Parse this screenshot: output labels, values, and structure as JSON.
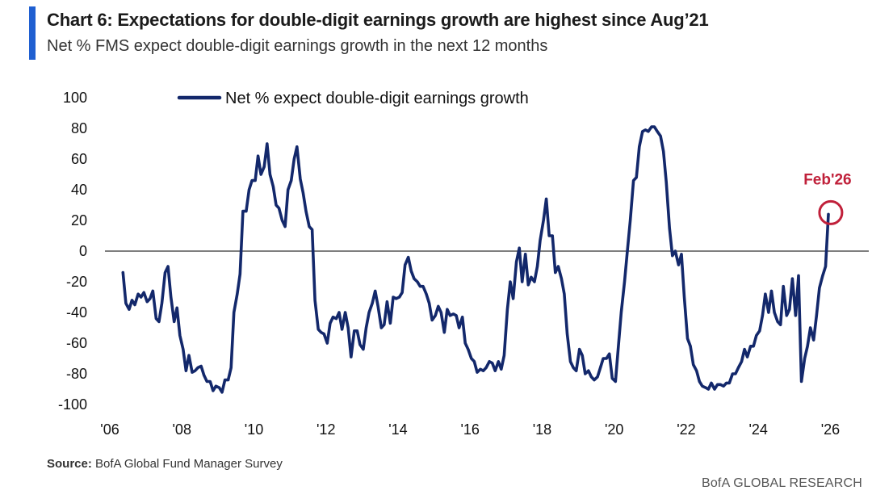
{
  "header": {
    "title": "Chart 6: Expectations for double-digit earnings growth are highest since Aug’21",
    "subtitle": "Net % FMS expect double-digit earnings growth in the next 12 months"
  },
  "footer": {
    "source_label": "Source:",
    "source_text": " BofA Global Fund Manager Survey",
    "brand": "BofA GLOBAL RESEARCH"
  },
  "colors": {
    "line": "#13286b",
    "accent": "#1f5fd1",
    "annotation": "#c0203a",
    "zero_line": "#555555"
  },
  "chart_data": {
    "type": "line",
    "title": "Chart 6: Expectations for double-digit earnings growth are highest since Aug’21",
    "xlabel": "",
    "ylabel": "",
    "ylim": [
      -100,
      100
    ],
    "xlim": [
      2006.0,
      2027.2
    ],
    "yticks": [
      100,
      80,
      60,
      40,
      20,
      0,
      -20,
      -40,
      -60,
      -80,
      -100
    ],
    "xticks": [
      {
        "value": 2006,
        "label": "'06"
      },
      {
        "value": 2008,
        "label": "'08"
      },
      {
        "value": 2010,
        "label": "'10"
      },
      {
        "value": 2012,
        "label": "'12"
      },
      {
        "value": 2014,
        "label": "'14"
      },
      {
        "value": 2016,
        "label": "'16"
      },
      {
        "value": 2018,
        "label": "'18"
      },
      {
        "value": 2020,
        "label": "'20"
      },
      {
        "value": 2022,
        "label": "'22"
      },
      {
        "value": 2024,
        "label": "'24"
      },
      {
        "value": 2026,
        "label": "'26"
      }
    ],
    "legend": {
      "position": "top-left",
      "entries": [
        "Net % expect double-digit earnings growth"
      ]
    },
    "annotation": {
      "label": "Feb'26",
      "x": 2026.1,
      "y": 24
    },
    "series": [
      {
        "name": "Net % expect double-digit earnings growth",
        "points": [
          [
            2006.5,
            -14
          ],
          [
            2006.58,
            -34
          ],
          [
            2006.67,
            -38
          ],
          [
            2006.75,
            -32
          ],
          [
            2006.83,
            -35
          ],
          [
            2006.92,
            -28
          ],
          [
            2007.0,
            -30
          ],
          [
            2007.08,
            -27
          ],
          [
            2007.17,
            -33
          ],
          [
            2007.25,
            -31
          ],
          [
            2007.33,
            -26
          ],
          [
            2007.42,
            -44
          ],
          [
            2007.5,
            -46
          ],
          [
            2007.58,
            -34
          ],
          [
            2007.67,
            -14
          ],
          [
            2007.75,
            -10
          ],
          [
            2007.83,
            -30
          ],
          [
            2007.92,
            -46
          ],
          [
            2008.0,
            -37
          ],
          [
            2008.08,
            -55
          ],
          [
            2008.17,
            -64
          ],
          [
            2008.25,
            -78
          ],
          [
            2008.33,
            -68
          ],
          [
            2008.42,
            -79
          ],
          [
            2008.5,
            -78
          ],
          [
            2008.58,
            -76
          ],
          [
            2008.67,
            -75
          ],
          [
            2008.75,
            -81
          ],
          [
            2008.83,
            -85
          ],
          [
            2008.92,
            -85
          ],
          [
            2009.0,
            -91
          ],
          [
            2009.08,
            -88
          ],
          [
            2009.17,
            -89
          ],
          [
            2009.25,
            -92
          ],
          [
            2009.33,
            -84
          ],
          [
            2009.42,
            -84
          ],
          [
            2009.5,
            -76
          ],
          [
            2009.58,
            -40
          ],
          [
            2009.67,
            -28
          ],
          [
            2009.75,
            -15
          ],
          [
            2009.83,
            26
          ],
          [
            2009.92,
            26
          ],
          [
            2010.0,
            40
          ],
          [
            2010.08,
            46
          ],
          [
            2010.17,
            46
          ],
          [
            2010.25,
            62
          ],
          [
            2010.33,
            50
          ],
          [
            2010.42,
            55
          ],
          [
            2010.5,
            70
          ],
          [
            2010.58,
            50
          ],
          [
            2010.67,
            42
          ],
          [
            2010.75,
            30
          ],
          [
            2010.83,
            28
          ],
          [
            2010.92,
            20
          ],
          [
            2011.0,
            16
          ],
          [
            2011.08,
            40
          ],
          [
            2011.17,
            46
          ],
          [
            2011.25,
            60
          ],
          [
            2011.33,
            68
          ],
          [
            2011.42,
            47
          ],
          [
            2011.5,
            38
          ],
          [
            2011.58,
            26
          ],
          [
            2011.67,
            16
          ],
          [
            2011.75,
            14
          ],
          [
            2011.83,
            -32
          ],
          [
            2011.92,
            -51
          ],
          [
            2012.0,
            -53
          ],
          [
            2012.08,
            -54
          ],
          [
            2012.17,
            -60
          ],
          [
            2012.25,
            -47
          ],
          [
            2012.33,
            -43
          ],
          [
            2012.42,
            -44
          ],
          [
            2012.5,
            -40
          ],
          [
            2012.58,
            -51
          ],
          [
            2012.67,
            -40
          ],
          [
            2012.75,
            -50
          ],
          [
            2012.83,
            -69
          ],
          [
            2012.92,
            -52
          ],
          [
            2013.0,
            -52
          ],
          [
            2013.08,
            -61
          ],
          [
            2013.17,
            -64
          ],
          [
            2013.25,
            -50
          ],
          [
            2013.33,
            -40
          ],
          [
            2013.42,
            -34
          ],
          [
            2013.5,
            -26
          ],
          [
            2013.58,
            -36
          ],
          [
            2013.67,
            -50
          ],
          [
            2013.75,
            -48
          ],
          [
            2013.83,
            -33
          ],
          [
            2013.92,
            -47
          ],
          [
            2014.0,
            -30
          ],
          [
            2014.08,
            -31
          ],
          [
            2014.17,
            -30
          ],
          [
            2014.25,
            -27
          ],
          [
            2014.33,
            -9
          ],
          [
            2014.42,
            -4
          ],
          [
            2014.5,
            -13
          ],
          [
            2014.58,
            -18
          ],
          [
            2014.67,
            -20
          ],
          [
            2014.75,
            -23
          ],
          [
            2014.83,
            -23
          ],
          [
            2014.92,
            -28
          ],
          [
            2015.0,
            -34
          ],
          [
            2015.08,
            -45
          ],
          [
            2015.17,
            -42
          ],
          [
            2015.25,
            -36
          ],
          [
            2015.33,
            -40
          ],
          [
            2015.42,
            -53
          ],
          [
            2015.5,
            -38
          ],
          [
            2015.58,
            -42
          ],
          [
            2015.67,
            -41
          ],
          [
            2015.75,
            -42
          ],
          [
            2015.83,
            -50
          ],
          [
            2015.92,
            -43
          ],
          [
            2016.0,
            -60
          ],
          [
            2016.08,
            -64
          ],
          [
            2016.17,
            -70
          ],
          [
            2016.25,
            -72
          ],
          [
            2016.33,
            -79
          ],
          [
            2016.42,
            -77
          ],
          [
            2016.5,
            -78
          ],
          [
            2016.58,
            -76
          ],
          [
            2016.67,
            -72
          ],
          [
            2016.75,
            -73
          ],
          [
            2016.83,
            -78
          ],
          [
            2016.92,
            -72
          ],
          [
            2017.0,
            -77
          ],
          [
            2017.08,
            -68
          ],
          [
            2017.17,
            -38
          ],
          [
            2017.25,
            -20
          ],
          [
            2017.33,
            -31
          ],
          [
            2017.42,
            -7
          ],
          [
            2017.5,
            2
          ],
          [
            2017.58,
            -20
          ],
          [
            2017.67,
            -2
          ],
          [
            2017.75,
            -22
          ],
          [
            2017.83,
            -17
          ],
          [
            2017.92,
            -20
          ],
          [
            2018.0,
            -10
          ],
          [
            2018.08,
            7
          ],
          [
            2018.17,
            20
          ],
          [
            2018.25,
            34
          ],
          [
            2018.33,
            10
          ],
          [
            2018.42,
            10
          ],
          [
            2018.5,
            -14
          ],
          [
            2018.58,
            -10
          ],
          [
            2018.67,
            -18
          ],
          [
            2018.75,
            -28
          ],
          [
            2018.83,
            -54
          ],
          [
            2018.92,
            -72
          ],
          [
            2019.0,
            -76
          ],
          [
            2019.08,
            -78
          ],
          [
            2019.17,
            -64
          ],
          [
            2019.25,
            -68
          ],
          [
            2019.33,
            -80
          ],
          [
            2019.42,
            -78
          ],
          [
            2019.5,
            -82
          ],
          [
            2019.58,
            -84
          ],
          [
            2019.67,
            -82
          ],
          [
            2019.75,
            -76
          ],
          [
            2019.83,
            -70
          ],
          [
            2019.92,
            -70
          ],
          [
            2020.0,
            -67
          ],
          [
            2020.08,
            -83
          ],
          [
            2020.17,
            -85
          ],
          [
            2020.25,
            -62
          ],
          [
            2020.33,
            -40
          ],
          [
            2020.42,
            -20
          ],
          [
            2020.5,
            0
          ],
          [
            2020.58,
            20
          ],
          [
            2020.67,
            46
          ],
          [
            2020.75,
            48
          ],
          [
            2020.83,
            68
          ],
          [
            2020.92,
            78
          ],
          [
            2021.0,
            79
          ],
          [
            2021.08,
            78
          ],
          [
            2021.17,
            81
          ],
          [
            2021.25,
            81
          ],
          [
            2021.33,
            78
          ],
          [
            2021.42,
            75
          ],
          [
            2021.5,
            65
          ],
          [
            2021.58,
            45
          ],
          [
            2021.67,
            15
          ],
          [
            2021.75,
            -3
          ],
          [
            2021.83,
            0
          ],
          [
            2021.92,
            -9
          ],
          [
            2022.0,
            -2
          ],
          [
            2022.08,
            -30
          ],
          [
            2022.17,
            -57
          ],
          [
            2022.25,
            -62
          ],
          [
            2022.33,
            -74
          ],
          [
            2022.42,
            -78
          ],
          [
            2022.5,
            -85
          ],
          [
            2022.58,
            -88
          ],
          [
            2022.67,
            -89
          ],
          [
            2022.75,
            -90
          ],
          [
            2022.83,
            -86
          ],
          [
            2022.92,
            -90
          ],
          [
            2023.0,
            -87
          ],
          [
            2023.08,
            -87
          ],
          [
            2023.17,
            -88
          ],
          [
            2023.25,
            -86
          ],
          [
            2023.33,
            -86
          ],
          [
            2023.42,
            -80
          ],
          [
            2023.5,
            -80
          ],
          [
            2023.58,
            -76
          ],
          [
            2023.67,
            -72
          ],
          [
            2023.75,
            -64
          ],
          [
            2023.83,
            -69
          ],
          [
            2023.92,
            -62
          ],
          [
            2024.0,
            -62
          ],
          [
            2024.08,
            -55
          ],
          [
            2024.17,
            -52
          ],
          [
            2024.25,
            -42
          ],
          [
            2024.33,
            -28
          ],
          [
            2024.42,
            -40
          ],
          [
            2024.5,
            -26
          ],
          [
            2024.58,
            -40
          ],
          [
            2024.67,
            -46
          ],
          [
            2024.75,
            -48
          ],
          [
            2024.83,
            -23
          ],
          [
            2024.92,
            -42
          ],
          [
            2025.0,
            -38
          ],
          [
            2025.08,
            -18
          ],
          [
            2025.17,
            -42
          ],
          [
            2025.25,
            -16
          ],
          [
            2025.33,
            -85
          ],
          [
            2025.42,
            -70
          ],
          [
            2025.5,
            -62
          ],
          [
            2025.58,
            -50
          ],
          [
            2025.67,
            -58
          ],
          [
            2025.75,
            -42
          ],
          [
            2025.83,
            -24
          ],
          [
            2025.92,
            -16
          ],
          [
            2026.0,
            -10
          ],
          [
            2026.08,
            24
          ]
        ]
      }
    ]
  }
}
